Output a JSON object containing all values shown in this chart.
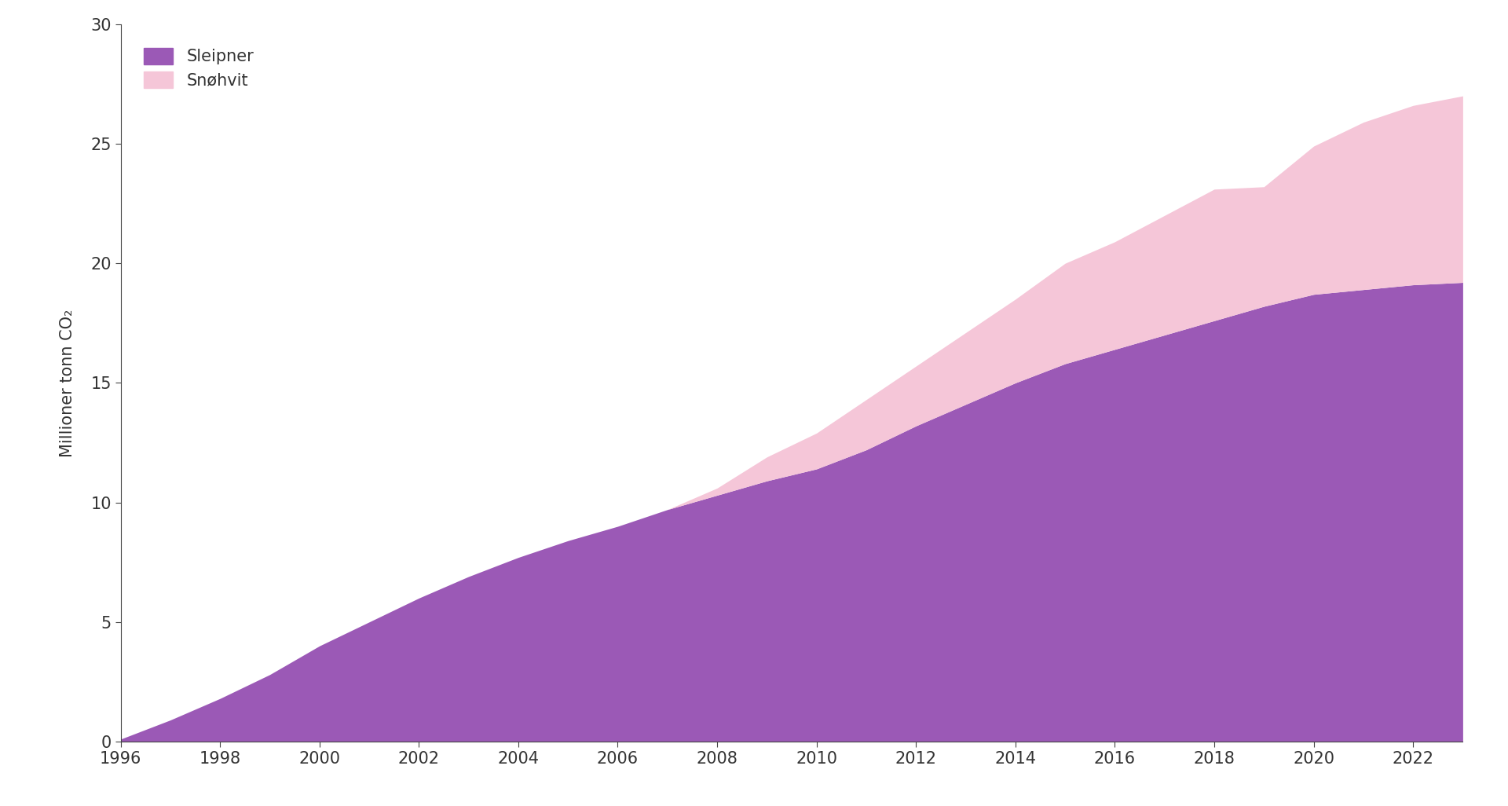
{
  "years": [
    1996,
    1997,
    1998,
    1999,
    2000,
    2001,
    2002,
    2003,
    2004,
    2005,
    2006,
    2007,
    2008,
    2009,
    2010,
    2011,
    2012,
    2013,
    2014,
    2015,
    2016,
    2017,
    2018,
    2019,
    2020,
    2021,
    2022,
    2023
  ],
  "sleipner": [
    0.1,
    0.9,
    1.8,
    2.8,
    4.0,
    5.0,
    6.0,
    6.9,
    7.7,
    8.4,
    9.0,
    9.7,
    10.3,
    10.9,
    11.4,
    12.2,
    13.2,
    14.1,
    15.0,
    15.8,
    16.4,
    17.0,
    17.6,
    18.2,
    18.7,
    18.9,
    19.1,
    19.2
  ],
  "snohvit": [
    0.0,
    0.0,
    0.0,
    0.0,
    0.0,
    0.0,
    0.0,
    0.0,
    0.0,
    0.0,
    0.0,
    0.0,
    0.3,
    1.0,
    1.5,
    2.1,
    2.5,
    3.0,
    3.5,
    4.2,
    4.5,
    5.0,
    5.5,
    5.0,
    6.2,
    7.0,
    7.5,
    7.8
  ],
  "sleipner_color": "#9B59B6",
  "snohvit_color": "#F5C6D8",
  "background_color": "#ffffff",
  "ylabel": "Millioner tonn CO₂",
  "ylim": [
    0,
    30
  ],
  "xlim": [
    1996,
    2023
  ],
  "yticks": [
    0,
    5,
    10,
    15,
    20,
    25,
    30
  ],
  "xticks": [
    1996,
    1998,
    2000,
    2002,
    2004,
    2006,
    2008,
    2010,
    2012,
    2014,
    2016,
    2018,
    2020,
    2022
  ],
  "legend_sleipner": "Sleipner",
  "legend_snohvit": "Snøhvit",
  "figsize": [
    19.2,
    10.26
  ],
  "dpi": 100
}
